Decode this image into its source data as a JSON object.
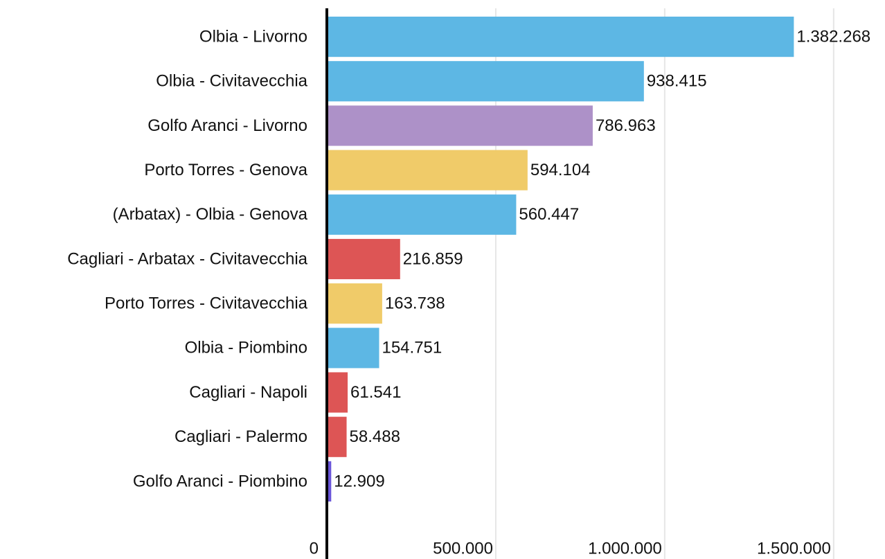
{
  "chart_data": {
    "type": "bar",
    "orientation": "horizontal",
    "categories": [
      "Olbia - Livorno",
      "Olbia - Civitavecchia",
      "Golfo Aranci - Livorno",
      "Porto Torres - Genova",
      "(Arbatax) - Olbia - Genova",
      "Cagliari - Arbatax - Civitavecchia",
      "Porto Torres - Civitavecchia",
      "Olbia - Piombino",
      "Cagliari - Napoli",
      "Cagliari - Palermo",
      "Golfo Aranci - Piombino"
    ],
    "values": [
      1382268,
      938415,
      786963,
      594104,
      560447,
      216859,
      163738,
      154751,
      61541,
      58488,
      12909
    ],
    "value_labels": [
      "1.382.268",
      "938.415",
      "786.963",
      "594.104",
      "560.447",
      "216.859",
      "163.738",
      "154.751",
      "61.541",
      "58.488",
      "12.909"
    ],
    "colors": [
      "#5db7e4",
      "#5db7e4",
      "#ad91c8",
      "#f0cb69",
      "#5db7e4",
      "#dd5555",
      "#f0cb69",
      "#5db7e4",
      "#dd5555",
      "#dd5555",
      "#6a55d9"
    ],
    "xlim": [
      0,
      1650000
    ],
    "xticks": [
      0,
      {
        "value": 500000,
        "label": "500.000"
      },
      {
        "value": 1000000,
        "label": "1.000.000"
      },
      {
        "value": 1500000,
        "label": "1.500.000"
      }
    ],
    "grid": true
  }
}
